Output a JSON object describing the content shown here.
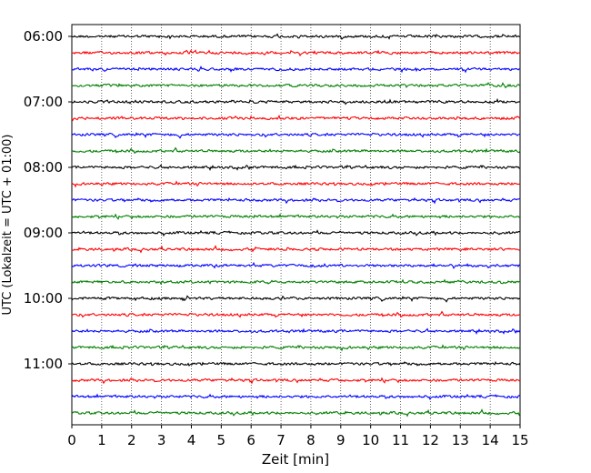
{
  "chart_data": {
    "type": "line",
    "title": "",
    "xlabel": "Zeit  [min]",
    "ylabel": "UTC (Lokalzeit = UTC + 01:00)",
    "xlim": [
      0,
      15
    ],
    "x_ticks": [
      0,
      1,
      2,
      3,
      4,
      5,
      6,
      7,
      8,
      9,
      10,
      11,
      12,
      13,
      14,
      15
    ],
    "y_ticks": [
      "06:00",
      "07:00",
      "08:00",
      "09:00",
      "10:00",
      "11:00"
    ],
    "grid": "vertical dotted at each minute",
    "series_colors": [
      "#000000",
      "#ff0000",
      "#0000ff",
      "#007f00"
    ],
    "traces_per_hour": 4,
    "trace_start_times": [
      "06:00",
      "06:15",
      "06:30",
      "06:45",
      "07:00",
      "07:15",
      "07:30",
      "07:45",
      "08:00",
      "08:15",
      "08:30",
      "08:45",
      "09:00",
      "09:15",
      "09:30",
      "09:45",
      "10:00",
      "10:15",
      "10:30",
      "10:45",
      "11:00",
      "11:15",
      "11:30",
      "11:45"
    ]
  }
}
